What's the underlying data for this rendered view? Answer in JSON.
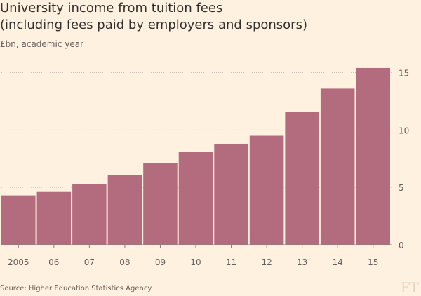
{
  "title_line1": "University income from tuition fees",
  "title_line2": "(including fees paid by employers and sponsors)",
  "subtitle": "£bn, academic year",
  "source": "Source: Higher Education Statistics Agency",
  "logo_text": "FT",
  "colors": {
    "background": "#fff1e0",
    "bar": "#b36b7e",
    "grid": "#c8bfb5",
    "axis_text": "#66605c"
  },
  "chart_data": {
    "type": "bar",
    "categories": [
      "2005",
      "06",
      "07",
      "08",
      "09",
      "10",
      "11",
      "12",
      "13",
      "14",
      "15"
    ],
    "values": [
      4.3,
      4.6,
      5.3,
      6.1,
      7.1,
      8.1,
      8.8,
      9.5,
      11.6,
      13.6,
      15.4
    ],
    "title": "University income from tuition fees (including fees paid by employers and sponsors)",
    "subtitle": "£bn, academic year",
    "xlabel": "",
    "ylabel": "",
    "ylim": [
      0,
      15
    ],
    "yticks": [
      0,
      5,
      10,
      15
    ],
    "y_axis_side": "right",
    "grid": true
  }
}
